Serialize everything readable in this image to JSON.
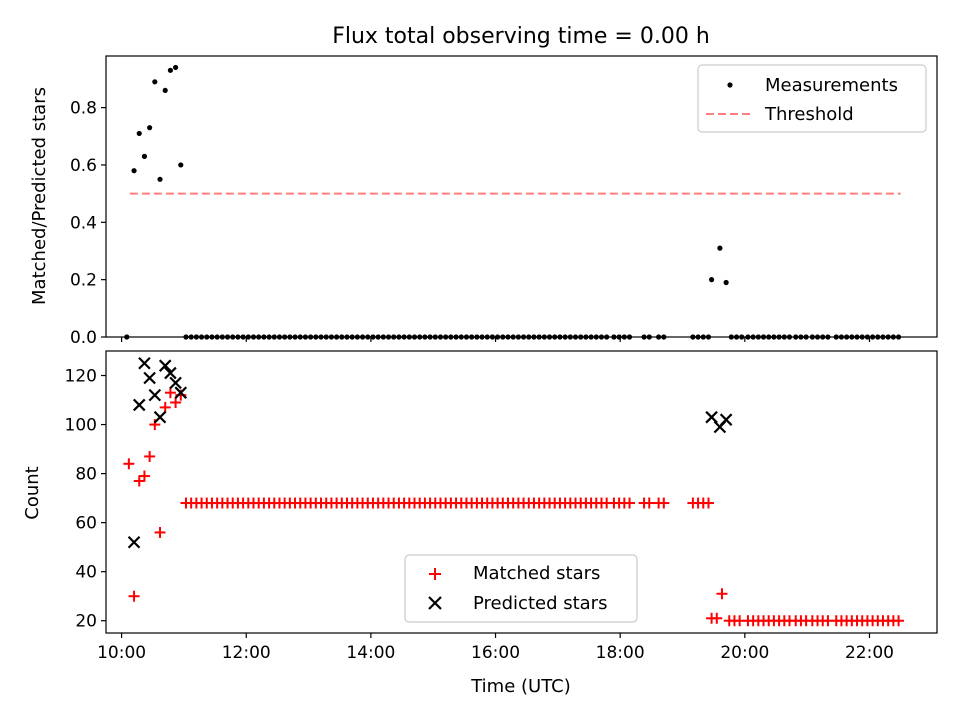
{
  "chart_data": [
    {
      "type": "scatter",
      "title": "Flux total observing time = 0.00 h",
      "xlabel": "",
      "ylabel": "Matched/Predicted stars",
      "xlim": [
        "09:45",
        "23:05"
      ],
      "ylim": [
        0,
        0.98
      ],
      "yticks": [
        0.0,
        0.2,
        0.4,
        0.6,
        0.8
      ],
      "ytick_labels": [
        "0.0",
        "0.2",
        "0.4",
        "0.6",
        "0.8"
      ],
      "legend": {
        "position": "top-right",
        "entries": [
          "Measurements",
          "Threshold"
        ]
      },
      "grid": false,
      "series": [
        {
          "name": "Measurements",
          "marker": "dot",
          "color": "#000000",
          "points": [
            [
              "10:05",
              0.0
            ],
            [
              "10:12",
              0.58
            ],
            [
              "10:17",
              0.71
            ],
            [
              "10:22",
              0.63
            ],
            [
              "10:27",
              0.73
            ],
            [
              "10:32",
              0.89
            ],
            [
              "10:37",
              0.55
            ],
            [
              "10:42",
              0.86
            ],
            [
              "10:47",
              0.93
            ],
            [
              "10:52",
              0.94
            ],
            [
              "10:57",
              0.6
            ],
            [
              "19:28",
              0.2
            ],
            [
              "19:36",
              0.31
            ],
            [
              "19:42",
              0.19
            ]
          ],
          "zero_runs": [
            {
              "from": "11:02",
              "to": "17:48",
              "step_minutes": 5
            },
            {
              "from": "17:54",
              "to": "18:00",
              "step_minutes": 5
            },
            {
              "from": "18:04",
              "to": "18:10",
              "step_minutes": 5
            },
            {
              "from": "18:23",
              "to": "18:28",
              "step_minutes": 5
            },
            {
              "from": "18:37",
              "to": "18:45",
              "step_minutes": 5
            },
            {
              "from": "19:10",
              "to": "19:28",
              "step_minutes": 5
            },
            {
              "from": "19:47",
              "to": "19:58",
              "step_minutes": 5
            },
            {
              "from": "20:03",
              "to": "20:23",
              "step_minutes": 5
            },
            {
              "from": "20:28",
              "to": "20:45",
              "step_minutes": 5
            },
            {
              "from": "20:49",
              "to": "21:02",
              "step_minutes": 5
            },
            {
              "from": "21:05",
              "to": "21:23",
              "step_minutes": 5
            },
            {
              "from": "21:28",
              "to": "21:48",
              "step_minutes": 5
            },
            {
              "from": "21:53",
              "to": "22:30",
              "step_minutes": 5
            }
          ]
        },
        {
          "name": "Threshold",
          "style": "dashed",
          "color": "#ff7f7f",
          "points": [
            [
              "10:08",
              0.5
            ],
            [
              "22:30",
              0.5
            ]
          ]
        }
      ]
    },
    {
      "type": "scatter",
      "title": "",
      "xlabel": "Time (UTC)",
      "ylabel": "Count",
      "xlim": [
        "09:45",
        "23:05"
      ],
      "ylim": [
        15,
        130
      ],
      "xticks": [
        "10:00",
        "12:00",
        "14:00",
        "16:00",
        "18:00",
        "20:00",
        "22:00"
      ],
      "yticks": [
        20,
        40,
        60,
        80,
        100,
        120
      ],
      "ytick_labels": [
        "20",
        "40",
        "60",
        "80",
        "100",
        "120"
      ],
      "legend": {
        "position": "bottom-center",
        "entries": [
          "Matched stars",
          "Predicted stars"
        ]
      },
      "grid": false,
      "series": [
        {
          "name": "Matched stars",
          "marker": "plus",
          "color": "#ff0000",
          "points": [
            [
              "10:07",
              84
            ],
            [
              "10:12",
              30
            ],
            [
              "10:17",
              77
            ],
            [
              "10:22",
              79
            ],
            [
              "10:27",
              87
            ],
            [
              "10:32",
              100
            ],
            [
              "10:37",
              56
            ],
            [
              "10:42",
              107
            ],
            [
              "10:47",
              113
            ],
            [
              "10:52",
              109
            ],
            [
              "10:57",
              112
            ],
            [
              "19:28",
              21
            ],
            [
              "19:33",
              21
            ],
            [
              "19:38",
              31
            ]
          ],
          "constant_runs": [
            {
              "value": 68,
              "from": "11:02",
              "to": "17:48",
              "step_minutes": 5
            },
            {
              "value": 68,
              "from": "17:54",
              "to": "18:00",
              "step_minutes": 5
            },
            {
              "value": 68,
              "from": "18:04",
              "to": "18:10",
              "step_minutes": 5
            },
            {
              "value": 68,
              "from": "18:23",
              "to": "18:28",
              "step_minutes": 5
            },
            {
              "value": 68,
              "from": "18:37",
              "to": "18:45",
              "step_minutes": 5
            },
            {
              "value": 68,
              "from": "19:10",
              "to": "19:25",
              "step_minutes": 5
            },
            {
              "value": 20,
              "from": "19:45",
              "to": "19:58",
              "step_minutes": 5
            },
            {
              "value": 20,
              "from": "20:03",
              "to": "20:23",
              "step_minutes": 5
            },
            {
              "value": 20,
              "from": "20:28",
              "to": "20:45",
              "step_minutes": 5
            },
            {
              "value": 20,
              "from": "20:49",
              "to": "21:02",
              "step_minutes": 5
            },
            {
              "value": 20,
              "from": "21:05",
              "to": "21:23",
              "step_minutes": 5
            },
            {
              "value": 20,
              "from": "21:28",
              "to": "21:48",
              "step_minutes": 5
            },
            {
              "value": 20,
              "from": "21:53",
              "to": "22:30",
              "step_minutes": 5
            }
          ]
        },
        {
          "name": "Predicted stars",
          "marker": "x",
          "color": "#000000",
          "points": [
            [
              "10:12",
              52
            ],
            [
              "10:17",
              108
            ],
            [
              "10:22",
              125
            ],
            [
              "10:27",
              119
            ],
            [
              "10:32",
              112
            ],
            [
              "10:37",
              103
            ],
            [
              "10:42",
              124
            ],
            [
              "10:47",
              121
            ],
            [
              "10:52",
              117
            ],
            [
              "10:57",
              113
            ],
            [
              "19:28",
              103
            ],
            [
              "19:36",
              99
            ],
            [
              "19:42",
              102
            ]
          ]
        }
      ]
    }
  ]
}
